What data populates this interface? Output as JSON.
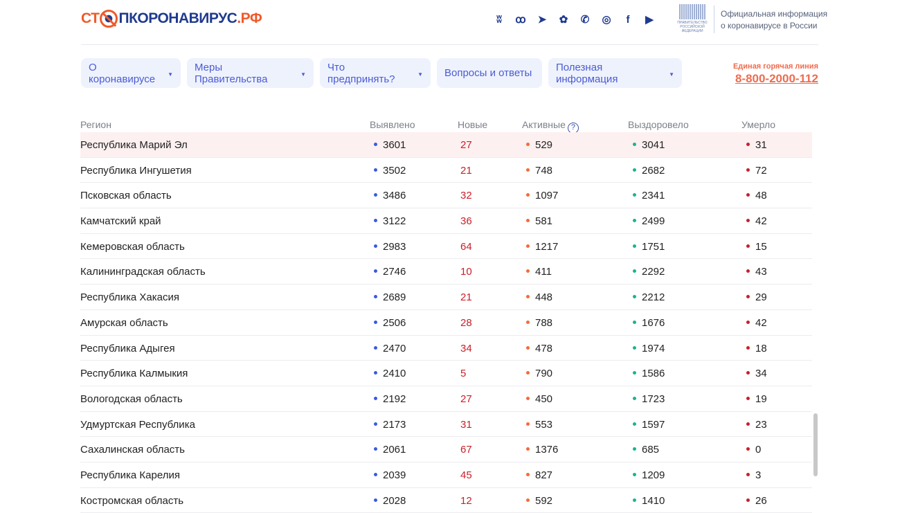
{
  "logo": {
    "part1": "СТ",
    "part2": "ПКОРОНАВИРУС",
    "part3": ".РФ"
  },
  "social": [
    {
      "icon": "vk-icon",
      "glyph": "ʬ"
    },
    {
      "icon": "odnoklassniki-icon",
      "glyph": "ꝏ"
    },
    {
      "icon": "telegram-icon",
      "glyph": "➤"
    },
    {
      "icon": "yandex-zen-icon",
      "glyph": "✿"
    },
    {
      "icon": "viber-icon",
      "glyph": "✆"
    },
    {
      "icon": "instagram-icon",
      "glyph": "◎"
    },
    {
      "icon": "facebook-icon",
      "glyph": "f"
    },
    {
      "icon": "youtube-icon",
      "glyph": "▶"
    }
  ],
  "gov": {
    "emblem_text": "ПРАВИТЕЛЬСТВО РОССИЙСКОЙ ФЕДЕРАЦИИ",
    "line1": "Официальная информация",
    "line2": "о коронавирусе в России"
  },
  "nav": [
    {
      "label": "О коронавирусе",
      "dropdown": true
    },
    {
      "label": "Меры Правительства",
      "dropdown": true
    },
    {
      "label": "Что предпринять?",
      "dropdown": true
    },
    {
      "label": "Вопросы и ответы",
      "dropdown": false
    },
    {
      "label": "Полезная информация",
      "dropdown": true
    }
  ],
  "hotline": {
    "label": "Единая горячая линия",
    "number": "8-800-2000-112"
  },
  "colors": {
    "detected": "#3b5bdb",
    "new": "#c8202a",
    "active": "#f26b3a",
    "recovered": "#19b394",
    "died": "#c8202a",
    "accent": "#f06b4d"
  },
  "table": {
    "headers": [
      "Регион",
      "Выявлено",
      "Новые",
      "Активные",
      "Выздоровело",
      "Умерло"
    ],
    "rows": [
      [
        "Республика Марий Эл",
        "3601",
        "27",
        "529",
        "3041",
        "31"
      ],
      [
        "Республика Ингушетия",
        "3502",
        "21",
        "748",
        "2682",
        "72"
      ],
      [
        "Псковская область",
        "3486",
        "32",
        "1097",
        "2341",
        "48"
      ],
      [
        "Камчатский край",
        "3122",
        "36",
        "581",
        "2499",
        "42"
      ],
      [
        "Кемеровская область",
        "2983",
        "64",
        "1217",
        "1751",
        "15"
      ],
      [
        "Калининградская область",
        "2746",
        "10",
        "411",
        "2292",
        "43"
      ],
      [
        "Республика Хакасия",
        "2689",
        "21",
        "448",
        "2212",
        "29"
      ],
      [
        "Амурская область",
        "2506",
        "28",
        "788",
        "1676",
        "42"
      ],
      [
        "Республика Адыгея",
        "2470",
        "34",
        "478",
        "1974",
        "18"
      ],
      [
        "Республика Калмыкия",
        "2410",
        "5",
        "790",
        "1586",
        "34"
      ],
      [
        "Вологодская область",
        "2192",
        "27",
        "450",
        "1723",
        "19"
      ],
      [
        "Удмуртская Республика",
        "2173",
        "31",
        "553",
        "1597",
        "23"
      ],
      [
        "Сахалинская область",
        "2061",
        "67",
        "1376",
        "685",
        "0"
      ],
      [
        "Республика Карелия",
        "2039",
        "45",
        "827",
        "1209",
        "3"
      ],
      [
        "Костромская область",
        "2028",
        "12",
        "592",
        "1410",
        "26"
      ]
    ]
  }
}
